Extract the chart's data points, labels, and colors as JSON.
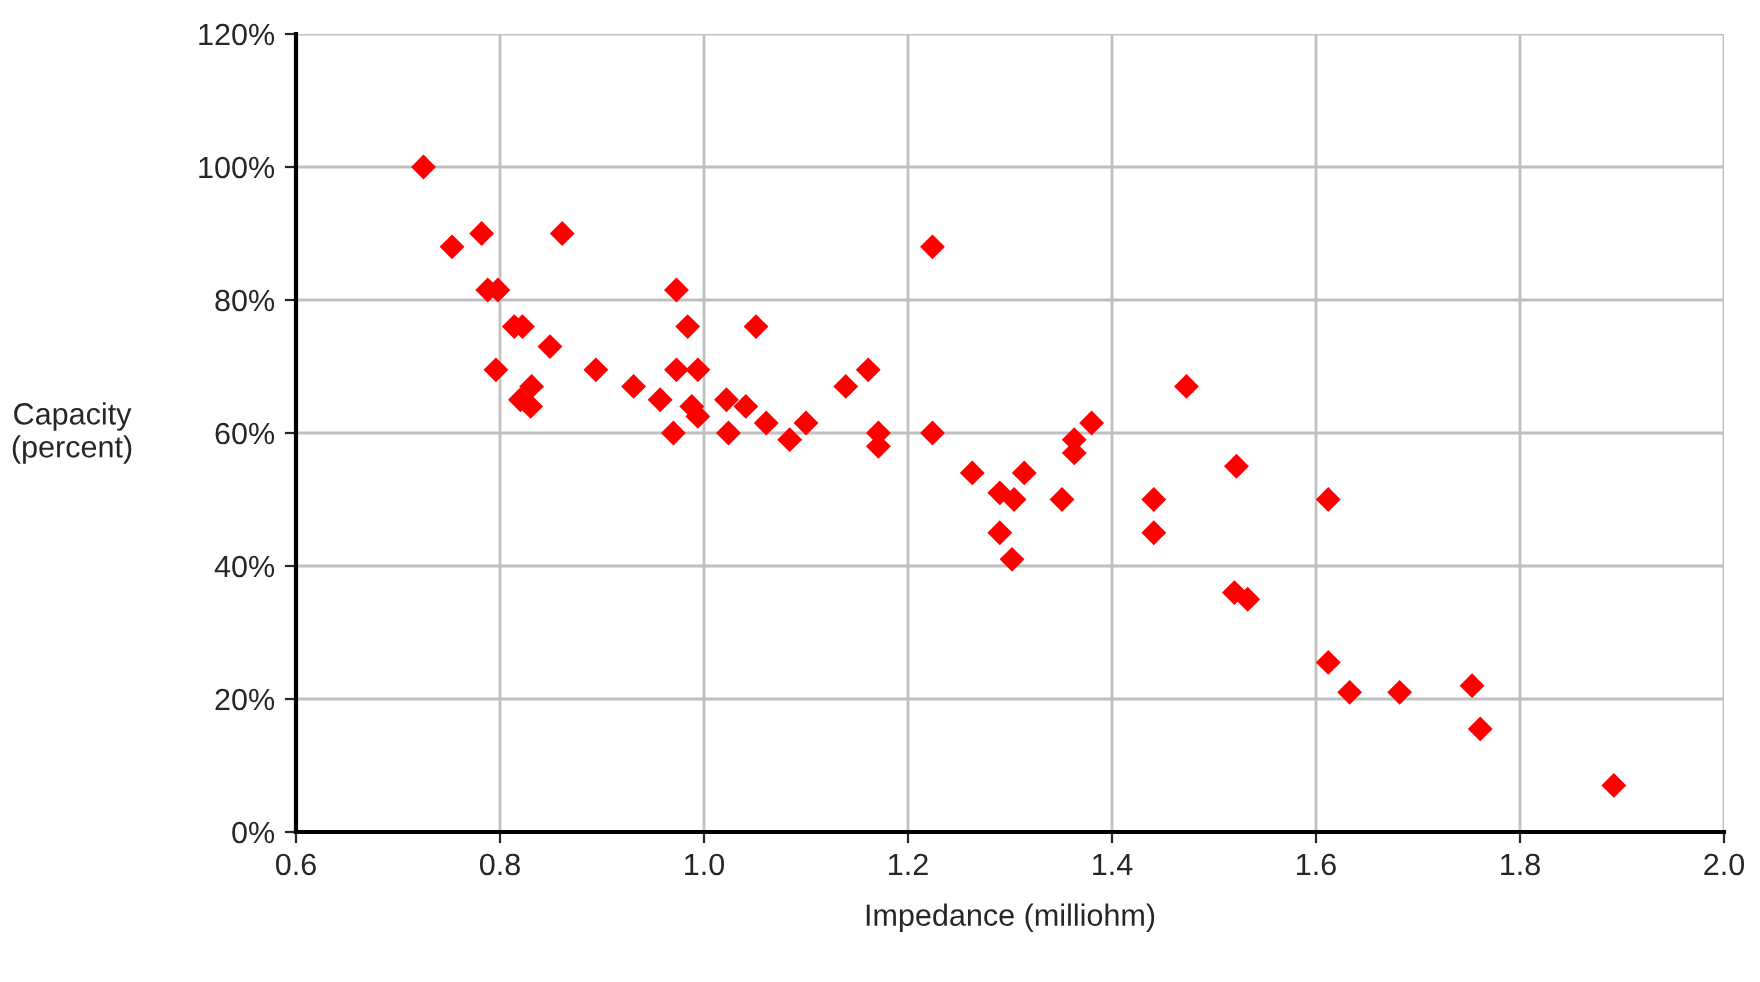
{
  "chart_data": {
    "type": "scatter",
    "xlabel": "Impedance (milliohm)",
    "ylabel": "Capacity\n(percent)",
    "x": [
      0.725,
      0.753,
      0.782,
      0.788,
      0.798,
      0.796,
      0.814,
      0.822,
      0.82,
      0.83,
      0.831,
      0.849,
      0.861,
      0.894,
      0.931,
      0.957,
      0.973,
      0.973,
      0.97,
      0.984,
      0.988,
      0.994,
      0.994,
      1.022,
      1.024,
      1.041,
      1.051,
      1.061,
      1.084,
      1.1,
      1.139,
      1.161,
      1.171,
      1.171,
      1.224,
      1.224,
      1.263,
      1.29,
      1.29,
      1.304,
      1.302,
      1.314,
      1.351,
      1.363,
      1.363,
      1.38,
      1.441,
      1.441,
      1.473,
      1.522,
      1.52,
      1.533,
      1.612,
      1.612,
      1.633,
      1.682,
      1.753,
      1.761,
      1.892
    ],
    "series": [
      {
        "color": "#ff0000",
        "values": [
          100,
          88,
          90,
          81.5,
          81.5,
          69.5,
          76,
          76,
          65,
          64,
          67,
          73,
          90,
          69.5,
          67,
          65,
          81.5,
          69.5,
          60,
          76,
          64,
          62.5,
          69.5,
          65,
          60,
          64,
          76,
          61.5,
          59,
          61.5,
          67,
          69.5,
          58,
          60,
          88,
          60,
          54,
          51,
          45,
          50,
          41,
          54,
          50,
          57,
          59,
          61.5,
          50,
          45,
          67,
          55,
          36,
          35,
          50,
          25.5,
          21,
          21,
          22,
          15.5,
          7
        ]
      }
    ],
    "marker": "diamond",
    "grid": true,
    "xlim": [
      0.6,
      2.0
    ],
    "xticks": [
      {
        "value": 0.6,
        "label": "0.6"
      },
      {
        "value": 0.8,
        "label": "0.8"
      },
      {
        "value": 1.0,
        "label": "1.0"
      },
      {
        "value": 1.2,
        "label": "1.2"
      },
      {
        "value": 1.4,
        "label": "1.4"
      },
      {
        "value": 1.6,
        "label": "1.6"
      },
      {
        "value": 1.8,
        "label": "1.8"
      },
      {
        "value": 2.0,
        "label": "2.0"
      }
    ],
    "ylim": [
      0,
      120
    ],
    "yticks": [
      {
        "value": 0,
        "label": "0%"
      },
      {
        "value": 20,
        "label": "20%"
      },
      {
        "value": 40,
        "label": "40%"
      },
      {
        "value": 60,
        "label": "60%"
      },
      {
        "value": 80,
        "label": "80%"
      },
      {
        "value": 100,
        "label": "100%"
      },
      {
        "value": 120,
        "label": "120%"
      }
    ]
  }
}
